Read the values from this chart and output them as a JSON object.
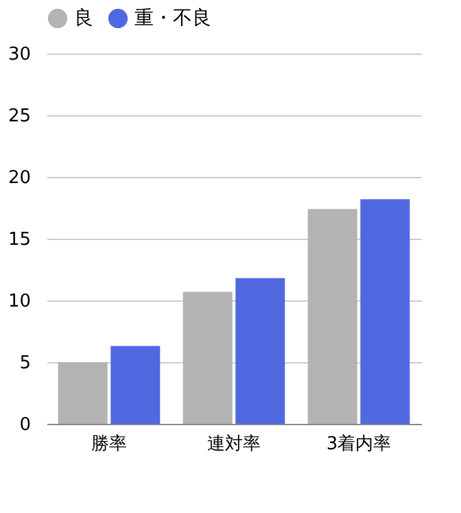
{
  "chart_data": {
    "type": "bar",
    "categories": [
      "勝率",
      "連対率",
      "3着内率"
    ],
    "series": [
      {
        "name": "良",
        "color": "#b3b3b3",
        "values": [
          5.0,
          10.7,
          17.4
        ]
      },
      {
        "name": "重・不良",
        "color": "#5069e0",
        "values": [
          6.3,
          11.8,
          18.2
        ]
      }
    ],
    "ylim": [
      0,
      30
    ],
    "yticks": [
      0,
      5,
      10,
      15,
      20,
      25,
      30
    ],
    "grid": "y",
    "legend": "top"
  }
}
